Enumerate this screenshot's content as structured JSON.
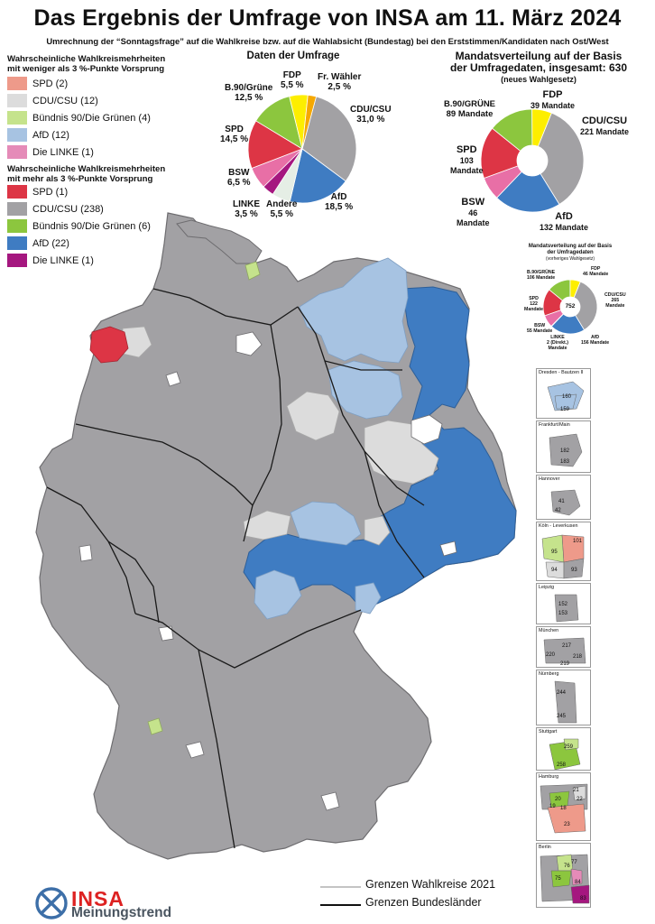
{
  "title": "Das Ergebnis der Umfrage von INSA am 11. März 2024",
  "subtitle": "Umrechnung der “Sonntagsfrage” auf die Wahlkreise bzw. auf die Wahlabsicht (Bundestag) bei den Erststimmen/Kandidaten nach Ost/West",
  "colors": {
    "spd_light": "#ee9a8a",
    "cdu_light": "#dcdcdc",
    "gruene_light": "#c5e38c",
    "afd_light": "#a7c3e2",
    "linke_light": "#e58bb8",
    "spd": "#dd3545",
    "cdu": "#a2a1a4",
    "gruene": "#8cc63e",
    "afd": "#3f7cc2",
    "linke": "#a5177f",
    "fdp": "#fdee00",
    "fw": "#f6a800",
    "bsw": "#e86fa6",
    "andere": "#e5eee5"
  },
  "legend_weak": {
    "heading_1": "Wahrscheinliche Wahlkreismehrheiten",
    "heading_2": "mit weniger als 3 %-Punkte Vorsprung",
    "items": [
      {
        "label": "SPD (2)",
        "color": "#ee9a8a"
      },
      {
        "label": "CDU/CSU (12)",
        "color": "#dcdcdc"
      },
      {
        "label": "Bündnis 90/Die Grünen (4)",
        "color": "#c5e38c"
      },
      {
        "label": "AfD (12)",
        "color": "#a7c3e2"
      },
      {
        "label": "Die LINKE (1)",
        "color": "#e58bb8"
      }
    ]
  },
  "legend_strong": {
    "heading_1": "Wahrscheinliche Wahlkreismehrheiten",
    "heading_2": "mit mehr als 3 %-Punkte Vorsprung",
    "items": [
      {
        "label": "SPD (1)",
        "color": "#dd3545"
      },
      {
        "label": "CDU/CSU (238)",
        "color": "#a2a1a4"
      },
      {
        "label": "Bündnis 90/Die Grünen (6)",
        "color": "#8cc63e"
      },
      {
        "label": "AfD (22)",
        "color": "#3f7cc2"
      },
      {
        "label": "Die LINKE (1)",
        "color": "#a5177f"
      }
    ]
  },
  "survey": {
    "title": "Daten der Umfrage",
    "slices": [
      {
        "party": "CDU/CSU",
        "pct_label": "31,0 %",
        "value": 31.0,
        "color": "#a2a1a4"
      },
      {
        "party": "AfD",
        "pct_label": "18,5 %",
        "value": 18.5,
        "color": "#3f7cc2"
      },
      {
        "party": "Andere",
        "pct_label": "5,5 %",
        "value": 5.5,
        "color": "#e5eee5"
      },
      {
        "party": "LINKE",
        "pct_label": "3,5 %",
        "value": 3.5,
        "color": "#a5177f"
      },
      {
        "party": "BSW",
        "pct_label": "6,5 %",
        "value": 6.5,
        "color": "#e86fa6"
      },
      {
        "party": "SPD",
        "pct_label": "14,5 %",
        "value": 14.5,
        "color": "#dd3545"
      },
      {
        "party": "B.90/Grüne",
        "pct_label": "12,5 %",
        "value": 12.5,
        "color": "#8cc63e"
      },
      {
        "party": "FDP",
        "pct_label": "5,5 %",
        "value": 5.5,
        "color": "#fdee00"
      },
      {
        "party": "Fr. Wähler",
        "pct_label": "2,5 %",
        "value": 2.5,
        "color": "#f6a800"
      }
    ]
  },
  "seats_new": {
    "title_1": "Mandatsverteilung auf der Basis",
    "title_2": "der Umfragedaten, insgesamt: 630",
    "title_3": "(neues Wahlgesetz)",
    "slices": [
      {
        "party": "CDU/CSU",
        "seats": 221,
        "label": "221 Mandate",
        "color": "#a2a1a4"
      },
      {
        "party": "AfD",
        "seats": 132,
        "label": "132 Mandate",
        "color": "#3f7cc2"
      },
      {
        "party": "BSW",
        "seats": 46,
        "label": "46",
        "label2": "Mandate",
        "color": "#e86fa6"
      },
      {
        "party": "SPD",
        "seats": 103,
        "label": "103",
        "label2": "Mandate",
        "color": "#dd3545"
      },
      {
        "party": "B.90/GRÜNE",
        "seats": 89,
        "label": "89 Mandate",
        "color": "#8cc63e"
      },
      {
        "party": "FDP",
        "seats": 39,
        "label": "39 Mandate",
        "color": "#fdee00"
      }
    ]
  },
  "seats_old": {
    "title_1": "Mandatsverteilung auf der Basis",
    "title_2": "der Umfragedaten",
    "title_3": "(vorheriges Wahlgesetz)",
    "total": "752",
    "slices": [
      {
        "party": "CDU/CSU",
        "seats": 265,
        "label": "265",
        "label2": "Mandate",
        "color": "#a2a1a4"
      },
      {
        "party": "AfD",
        "seats": 156,
        "label": "156 Mandate",
        "color": "#3f7cc2"
      },
      {
        "party": "LINKE",
        "seats": 2,
        "label": "2 (Direkt.)",
        "label2": "Mandate",
        "color": "#a5177f"
      },
      {
        "party": "BSW",
        "seats": 55,
        "label": "55 Mandate",
        "color": "#e86fa6"
      },
      {
        "party": "SPD",
        "seats": 122,
        "label": "122",
        "label2": "Mandate",
        "color": "#dd3545"
      },
      {
        "party": "B.90/GRÜNE",
        "seats": 106,
        "label": "106 Mandate",
        "color": "#8cc63e"
      },
      {
        "party": "FDP",
        "seats": 46,
        "label": "46 Mandate",
        "color": "#fdee00"
      }
    ]
  },
  "insets": [
    {
      "name": "Dresden - Bautzen II",
      "labels": [
        "160",
        "159"
      ]
    },
    {
      "name": "Frankfurt/Main",
      "labels": [
        "182",
        "183"
      ]
    },
    {
      "name": "Hannover",
      "labels": [
        "41",
        "42"
      ]
    },
    {
      "name": "Köln - Leverkusen",
      "labels": [
        "101",
        "95",
        "94",
        "93"
      ]
    },
    {
      "name": "Leipzig",
      "labels": [
        "152",
        "153"
      ]
    },
    {
      "name": "München",
      "labels": [
        "217",
        "220",
        "218",
        "219"
      ]
    },
    {
      "name": "Nürnberg",
      "labels": [
        "244",
        "245"
      ]
    },
    {
      "name": "Stuttgart",
      "labels": [
        "259",
        "258"
      ]
    },
    {
      "name": "Hamburg",
      "labels": [
        "21",
        "20",
        "19",
        "22",
        "18",
        "23"
      ]
    },
    {
      "name": "Berlin",
      "labels": [
        "76",
        "77",
        "75",
        "84",
        "83"
      ]
    }
  ],
  "footer": {
    "wahlkreise": "Grenzen Wahlkreise 2021",
    "bundeslaender": "Grenzen Bundesländer"
  },
  "logo": {
    "brand": "INSA",
    "sub": "Meinungstrend"
  }
}
